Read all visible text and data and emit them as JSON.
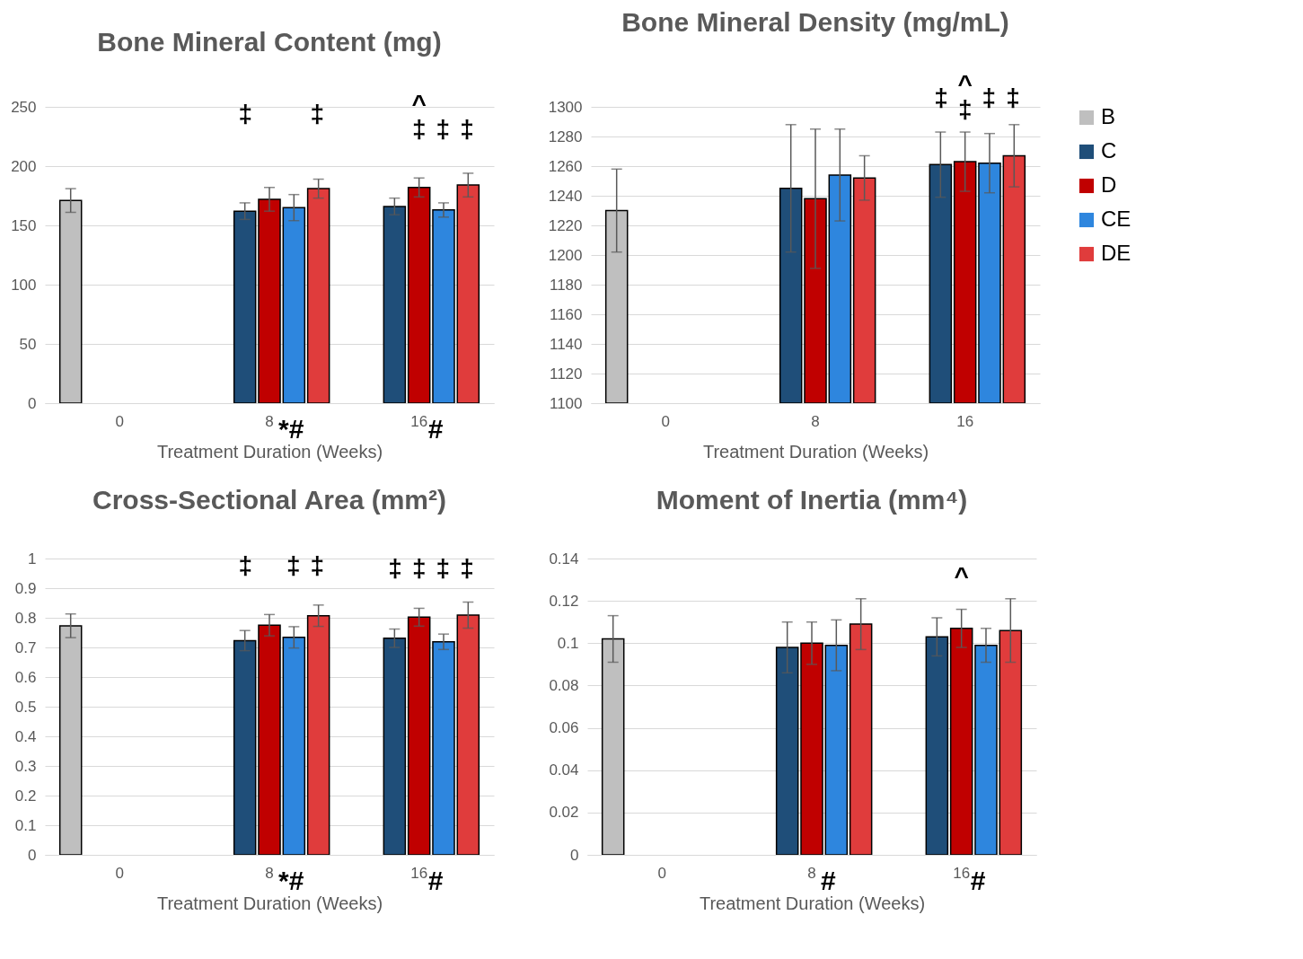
{
  "chart_data": [
    {
      "type": "bar",
      "title": "Bone Mineral Content (mg)",
      "xlabel": "Treatment Duration (Weeks)",
      "categories": [
        "0",
        "8",
        "16"
      ],
      "ylim": [
        0,
        250
      ],
      "yticks": [
        0,
        50,
        100,
        150,
        200,
        250
      ],
      "grid": "y",
      "legend": "right",
      "series": [
        {
          "name": "B",
          "color": "#bfbfbf",
          "values": [
            171,
            null,
            null
          ],
          "errors": [
            10,
            null,
            null
          ]
        },
        {
          "name": "C",
          "color": "#1f4e79",
          "values": [
            null,
            162,
            166
          ],
          "errors": [
            null,
            7,
            7
          ]
        },
        {
          "name": "D",
          "color": "#c00000",
          "values": [
            null,
            172,
            182
          ],
          "errors": [
            null,
            10,
            8
          ]
        },
        {
          "name": "CE",
          "color": "#2e86de",
          "values": [
            null,
            165,
            163
          ],
          "errors": [
            null,
            11,
            6
          ]
        },
        {
          "name": "DE",
          "color": "#e03c3c",
          "values": [
            null,
            181,
            184
          ],
          "errors": [
            null,
            8,
            10
          ]
        }
      ],
      "annotations": [
        "‡",
        "‡",
        "^",
        "‡",
        "‡",
        "‡",
        "*#",
        "#"
      ]
    },
    {
      "type": "bar",
      "title": "Bone Mineral Density (mg/mL)",
      "xlabel": "Treatment Duration (Weeks)",
      "categories": [
        "0",
        "8",
        "16"
      ],
      "ylim": [
        1100,
        1300
      ],
      "yticks": [
        1100,
        1120,
        1140,
        1160,
        1180,
        1200,
        1220,
        1240,
        1260,
        1280,
        1300
      ],
      "grid": "y",
      "legend": "right",
      "series": [
        {
          "name": "B",
          "color": "#bfbfbf",
          "values": [
            1230,
            null,
            null
          ],
          "errors": [
            28,
            null,
            null
          ]
        },
        {
          "name": "C",
          "color": "#1f4e79",
          "values": [
            null,
            1245,
            1261
          ],
          "errors": [
            null,
            43,
            22
          ]
        },
        {
          "name": "D",
          "color": "#c00000",
          "values": [
            null,
            1238,
            1263
          ],
          "errors": [
            null,
            47,
            20
          ]
        },
        {
          "name": "CE",
          "color": "#2e86de",
          "values": [
            null,
            1254,
            1262
          ],
          "errors": [
            null,
            31,
            20
          ]
        },
        {
          "name": "DE",
          "color": "#e03c3c",
          "values": [
            null,
            1252,
            1267
          ],
          "errors": [
            null,
            15,
            21
          ]
        }
      ],
      "annotations": [
        "^",
        "‡",
        "‡",
        "‡",
        "‡"
      ]
    },
    {
      "type": "bar",
      "title": "Cross-Sectional Area (mm²)",
      "xlabel": "Treatment Duration (Weeks)",
      "categories": [
        "0",
        "8",
        "16"
      ],
      "ylim": [
        0,
        1
      ],
      "yticks": [
        0,
        0.1,
        0.2,
        0.3,
        0.4,
        0.5,
        0.6,
        0.7,
        0.8,
        0.9,
        1
      ],
      "grid": "y",
      "legend": "right",
      "series": [
        {
          "name": "B",
          "color": "#bfbfbf",
          "values": [
            0.773,
            null,
            null
          ],
          "errors": [
            0.04,
            null,
            null
          ]
        },
        {
          "name": "C",
          "color": "#1f4e79",
          "values": [
            null,
            0.723,
            0.731
          ],
          "errors": [
            null,
            0.034,
            0.031
          ]
        },
        {
          "name": "D",
          "color": "#c00000",
          "values": [
            null,
            0.775,
            0.802
          ],
          "errors": [
            null,
            0.036,
            0.03
          ]
        },
        {
          "name": "CE",
          "color": "#2e86de",
          "values": [
            null,
            0.734,
            0.719
          ],
          "errors": [
            null,
            0.036,
            0.026
          ]
        },
        {
          "name": "DE",
          "color": "#e03c3c",
          "values": [
            null,
            0.807,
            0.809
          ],
          "errors": [
            null,
            0.036,
            0.044
          ]
        }
      ],
      "annotations": [
        "‡",
        "‡",
        "‡",
        "‡",
        "‡",
        "‡",
        "‡",
        "*#",
        "#"
      ]
    },
    {
      "type": "bar",
      "title": "Moment of Inertia (mm⁴)",
      "xlabel": "Treatment Duration (Weeks)",
      "categories": [
        "0",
        "8",
        "16"
      ],
      "ylim": [
        0,
        0.14
      ],
      "yticks": [
        0,
        0.02,
        0.04,
        0.06,
        0.08,
        0.1,
        0.12,
        0.14
      ],
      "grid": "y",
      "legend": "right",
      "series": [
        {
          "name": "B",
          "color": "#bfbfbf",
          "values": [
            0.102,
            null,
            null
          ],
          "errors": [
            0.011,
            null,
            null
          ]
        },
        {
          "name": "C",
          "color": "#1f4e79",
          "values": [
            null,
            0.098,
            0.103
          ],
          "errors": [
            null,
            0.012,
            0.009
          ]
        },
        {
          "name": "D",
          "color": "#c00000",
          "values": [
            null,
            0.1,
            0.107
          ],
          "errors": [
            null,
            0.01,
            0.009
          ]
        },
        {
          "name": "CE",
          "color": "#2e86de",
          "values": [
            null,
            0.099,
            0.099
          ],
          "errors": [
            null,
            0.012,
            0.008
          ]
        },
        {
          "name": "DE",
          "color": "#e03c3c",
          "values": [
            null,
            0.109,
            0.106
          ],
          "errors": [
            null,
            0.012,
            0.015
          ]
        }
      ],
      "annotations": [
        "^",
        "#",
        "#"
      ]
    }
  ]
}
